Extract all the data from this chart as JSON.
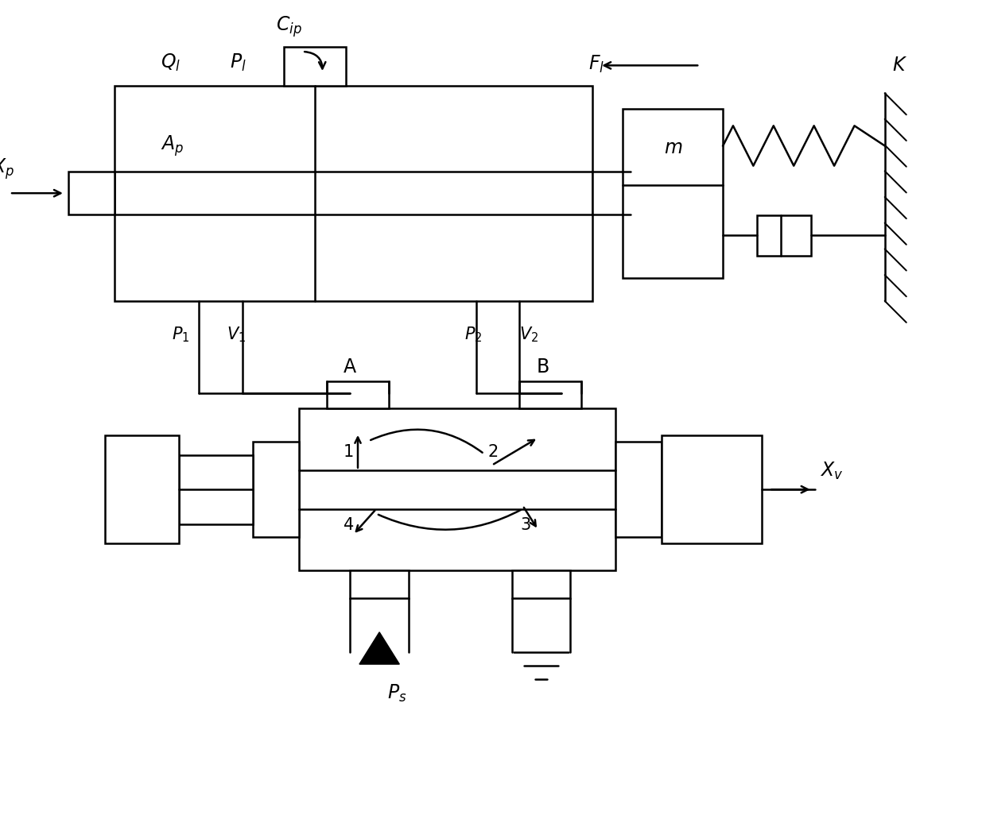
{
  "bg_color": "#ffffff",
  "line_color": "#000000",
  "lw": 1.8,
  "fig_w": 12.4,
  "fig_h": 10.31
}
